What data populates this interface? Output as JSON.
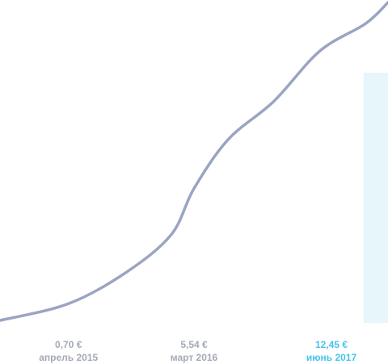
{
  "chart_data": {
    "type": "line",
    "series": [
      {
        "points": [
          {
            "x": "2014-10",
            "y": 0.0
          },
          {
            "x": "2015-04",
            "y": 0.7
          },
          {
            "x": "2015-09",
            "y": 2.0
          },
          {
            "x": "2016-01",
            "y": 3.6
          },
          {
            "x": "2016-03",
            "y": 5.54
          },
          {
            "x": "2016-06",
            "y": 7.6
          },
          {
            "x": "2016-10",
            "y": 9.2
          },
          {
            "x": "2017-02",
            "y": 11.3
          },
          {
            "x": "2017-06",
            "y": 12.45
          },
          {
            "x": "2017-08",
            "y": 13.35
          }
        ]
      }
    ],
    "highlight_region": {
      "from": "2017-06",
      "to": "2017-08",
      "color": "#e6f6fb"
    },
    "line_color": "#9ba4c2",
    "labels": [
      {
        "value": "0,70 €",
        "date": "апрель 2015",
        "active": false
      },
      {
        "value": "5,54 €",
        "date": "март 2016",
        "active": false
      },
      {
        "value": "12,45 €",
        "date": "июнь 2017",
        "active": true
      }
    ],
    "colors": {
      "label": "#a3a9b6",
      "active_label": "#46c3eb"
    },
    "grid": false,
    "legend": "none"
  }
}
